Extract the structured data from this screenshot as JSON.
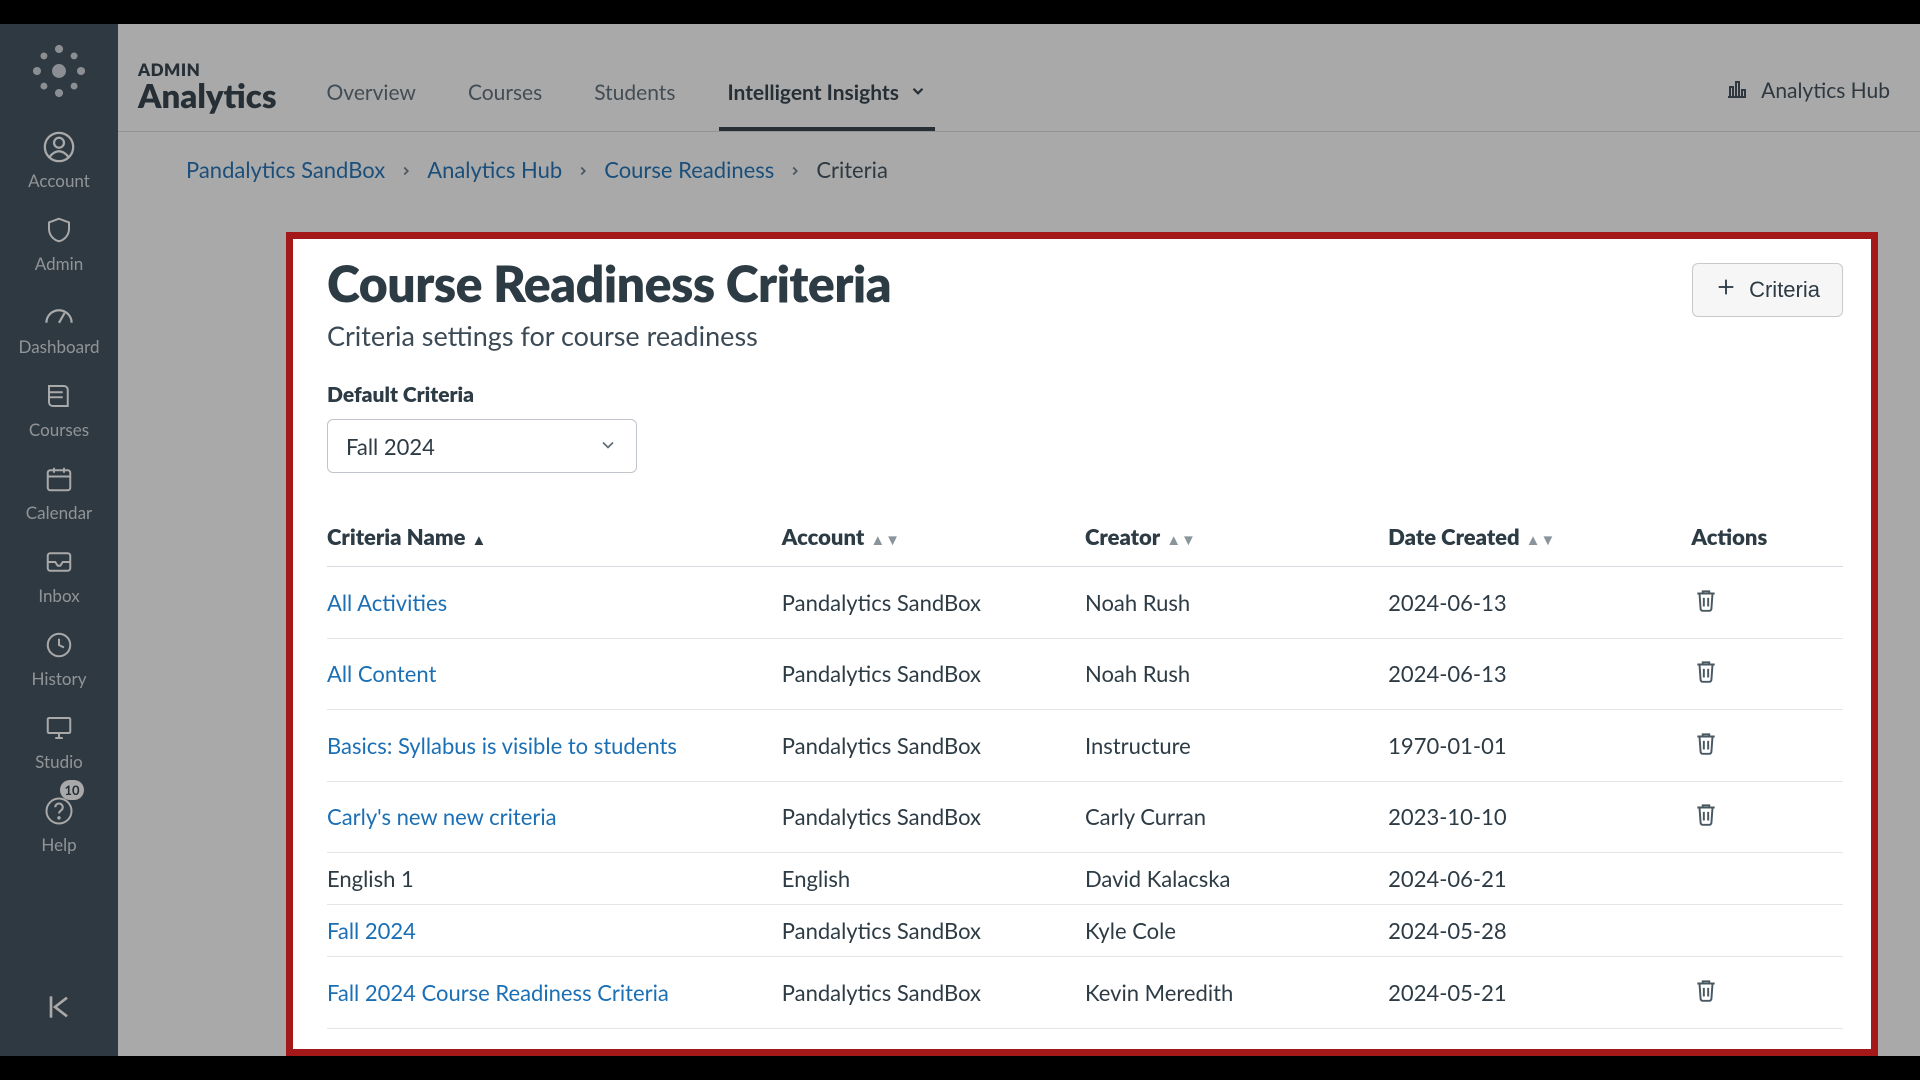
{
  "header": {
    "sup": "ADMIN",
    "title": "Analytics",
    "tabs": [
      "Overview",
      "Courses",
      "Students",
      "Intelligent Insights"
    ],
    "active_tab": 3,
    "right_link": "Analytics Hub"
  },
  "breadcrumbs": {
    "items": [
      "Pandalytics SandBox",
      "Analytics Hub",
      "Course Readiness"
    ],
    "current": "Criteria"
  },
  "panel": {
    "title": "Course Readiness Criteria",
    "subtitle": "Criteria settings for course readiness",
    "add_button": "Criteria",
    "default_label": "Default Criteria",
    "default_value": "Fall 2024"
  },
  "table": {
    "columns": [
      "Criteria Name",
      "Account",
      "Creator",
      "Date Created",
      "Actions"
    ],
    "sorted_col": 0,
    "sort_dir": "asc",
    "rows": [
      {
        "name": "All Activities",
        "link": true,
        "account": "Pandalytics SandBox",
        "creator": "Noah Rush",
        "date": "2024-06-13",
        "deletable": true
      },
      {
        "name": "All Content",
        "link": true,
        "account": "Pandalytics SandBox",
        "creator": "Noah Rush",
        "date": "2024-06-13",
        "deletable": true
      },
      {
        "name": "Basics: Syllabus is visible to students",
        "link": true,
        "account": "Pandalytics SandBox",
        "creator": "Instructure",
        "date": "1970-01-01",
        "deletable": true
      },
      {
        "name": "Carly's new new criteria",
        "link": true,
        "account": "Pandalytics SandBox",
        "creator": "Carly Curran",
        "date": "2023-10-10",
        "deletable": true
      },
      {
        "name": "English 1",
        "link": false,
        "account": "English",
        "creator": "David Kalacska",
        "date": "2024-06-21",
        "deletable": false,
        "compact": true
      },
      {
        "name": "Fall 2024",
        "link": true,
        "account": "Pandalytics SandBox",
        "creator": "Kyle Cole",
        "date": "2024-05-28",
        "deletable": false,
        "compact": true
      },
      {
        "name": "Fall 2024 Course Readiness Criteria",
        "link": true,
        "account": "Pandalytics SandBox",
        "creator": "Kevin Meredith",
        "date": "2024-05-21",
        "deletable": true
      }
    ]
  },
  "nav": {
    "items": [
      {
        "label": "Account",
        "icon": "user"
      },
      {
        "label": "Admin",
        "icon": "shield"
      },
      {
        "label": "Dashboard",
        "icon": "gauge"
      },
      {
        "label": "Courses",
        "icon": "book"
      },
      {
        "label": "Calendar",
        "icon": "calendar"
      },
      {
        "label": "Inbox",
        "icon": "inbox"
      },
      {
        "label": "History",
        "icon": "clock"
      },
      {
        "label": "Studio",
        "icon": "monitor"
      },
      {
        "label": "Help",
        "icon": "question",
        "badge": "10"
      }
    ]
  }
}
